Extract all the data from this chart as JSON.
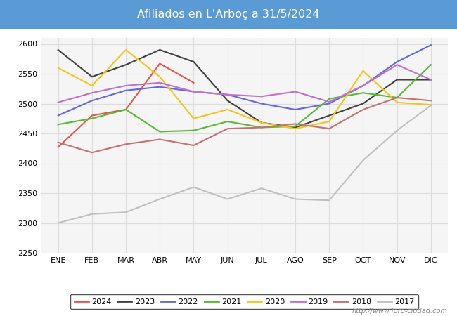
{
  "title": "Afiliados en L'Arboç a 31/5/2024",
  "title_bg_color": "#5b9bd5",
  "title_text_color": "white",
  "ylim": [
    2250,
    2610
  ],
  "yticks": [
    2250,
    2300,
    2350,
    2400,
    2450,
    2500,
    2550,
    2600
  ],
  "months": [
    "ENE",
    "FEB",
    "MAR",
    "ABR",
    "MAY",
    "JUN",
    "JUL",
    "AGO",
    "SEP",
    "OCT",
    "NOV",
    "DIC"
  ],
  "watermark": "http://www.foro-ciudad.com",
  "series": {
    "2024": {
      "color": "#e8534a",
      "data": [
        2427,
        2480,
        2490,
        2567,
        2535,
        null,
        null,
        null,
        null,
        null,
        null,
        null
      ]
    },
    "2023": {
      "color": "#404040",
      "data": [
        2590,
        2545,
        2565,
        2590,
        2570,
        2505,
        2468,
        2460,
        2480,
        2500,
        2540,
        2540
      ]
    },
    "2022": {
      "color": "#6666dd",
      "data": [
        2480,
        2505,
        2522,
        2528,
        2520,
        2515,
        2500,
        2490,
        2500,
        2530,
        2570,
        2598
      ]
    },
    "2021": {
      "color": "#55bb33",
      "data": [
        2465,
        2475,
        2490,
        2453,
        2455,
        2470,
        2460,
        2462,
        2508,
        2518,
        2510,
        2565
      ]
    },
    "2020": {
      "color": "#f5c518",
      "data": [
        2560,
        2530,
        2590,
        2545,
        2475,
        2490,
        2468,
        2458,
        2470,
        2555,
        2502,
        2498
      ]
    },
    "2019": {
      "color": "#c070c8",
      "data": [
        2502,
        2518,
        2530,
        2535,
        2520,
        2515,
        2512,
        2520,
        2503,
        2530,
        2565,
        2540
      ]
    },
    "2018": {
      "color": "#c87070",
      "data": [
        2435,
        2418,
        2432,
        2440,
        2430,
        2458,
        2460,
        2466,
        2458,
        2490,
        2510,
        2505
      ]
    },
    "2017": {
      "color": "#c0c0c0",
      "data": [
        2300,
        2315,
        2318,
        2340,
        2360,
        2340,
        2358,
        2340,
        2338,
        2405,
        2455,
        2497
      ]
    }
  },
  "legend_order": [
    "2024",
    "2023",
    "2022",
    "2021",
    "2020",
    "2019",
    "2018",
    "2017"
  ]
}
